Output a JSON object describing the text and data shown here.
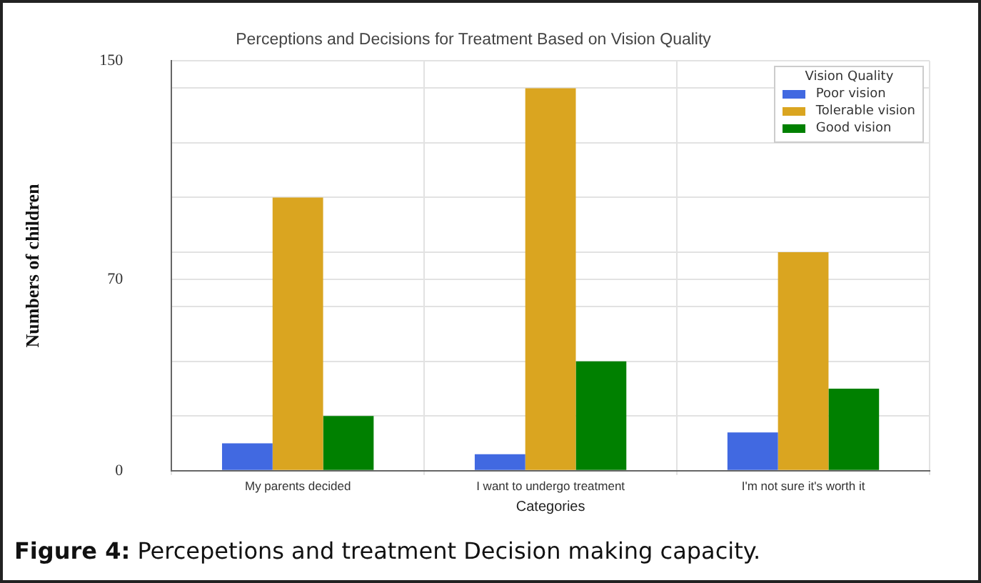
{
  "chart_data": {
    "type": "bar",
    "title": "Perceptions and Decisions for Treatment Based on Vision Quality",
    "xlabel": "Categories",
    "ylabel": "Numbers of children",
    "legend_title": "Vision Quality",
    "categories": [
      "My parents decided",
      "I want to undergo treatment",
      "I'm not sure it's worth it"
    ],
    "series": [
      {
        "name": "Poor vision",
        "color": "#4169e1",
        "values": [
          10,
          6,
          14
        ]
      },
      {
        "name": "Tolerable vision",
        "color": "#daa520",
        "values": [
          100,
          140,
          80
        ]
      },
      {
        "name": "Good vision",
        "color": "#008000",
        "values": [
          20,
          40,
          30
        ]
      }
    ],
    "ylim": [
      0,
      150
    ],
    "yticks": [
      0,
      {
        "value": 20,
        "label": null
      },
      {
        "value": 40,
        "label": null
      },
      {
        "value": 60,
        "label": null
      },
      70,
      {
        "value": 80,
        "label": null
      },
      {
        "value": 100,
        "label": null
      },
      {
        "value": 120,
        "label": null
      },
      {
        "value": 140,
        "label": null
      },
      150
    ],
    "grid": true,
    "legend": "top right",
    "annotations": [
      "Figure 4: Percepetions and treatment Decision making capacity."
    ]
  }
}
